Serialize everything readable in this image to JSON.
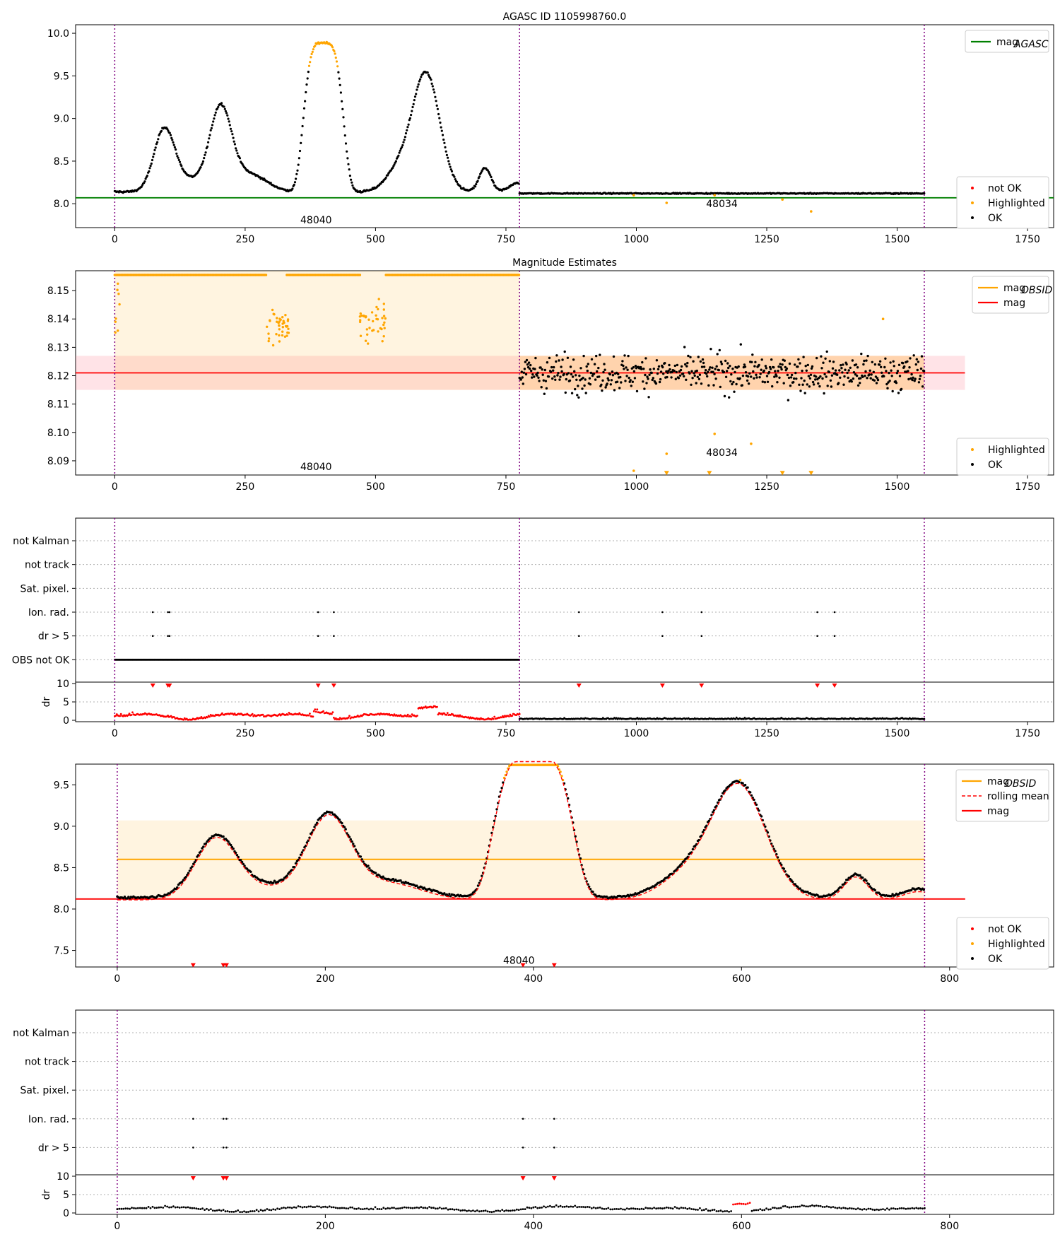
{
  "figure": {
    "title": "AGASC ID 1105998760.0"
  },
  "chart_data": [
    {
      "id": "p1",
      "type": "scatter",
      "title": "AGASC ID 1105998760.0",
      "xlim": [
        -75,
        1800
      ],
      "ylim": [
        7.72,
        10.1
      ],
      "xticks": [
        0,
        250,
        500,
        750,
        1000,
        1250,
        1500,
        1750
      ],
      "yticks": [
        8.0,
        8.5,
        9.0,
        9.5,
        10.0
      ],
      "ytick_labels": [
        "8.0",
        "8.5",
        "9.0",
        "9.5",
        "10.0"
      ],
      "vlines": [
        0,
        776,
        1552
      ],
      "hlines": [
        {
          "y": 8.07,
          "color": "#008000",
          "label": "mag_AGASC"
        }
      ],
      "obs_labels": [
        {
          "text": "48040",
          "x": 386,
          "y": 7.81
        },
        {
          "text": "48034",
          "x": 1164,
          "y": 8.0
        }
      ],
      "legend_upper": [
        {
          "kind": "line",
          "color": "#008000",
          "label": "mag",
          "sub": "AGASC"
        }
      ],
      "legend_lower": [
        {
          "kind": "dot",
          "color": "#ff0000",
          "label": "not OK"
        },
        {
          "kind": "dot",
          "color": "#ffa500",
          "label": "Highlighted"
        },
        {
          "kind": "dot",
          "color": "#000000",
          "label": "OK"
        }
      ],
      "series_obs1": {
        "x_range": [
          0,
          776
        ],
        "peaks": [
          [
            95,
            0.72
          ],
          [
            203,
            0.98
          ],
          [
            400,
            1.75
          ],
          [
            597,
            1.38
          ],
          [
            710,
            0.28
          ]
        ],
        "base": 8.14
      },
      "series_obs2": {
        "x_range": [
          776,
          1552
        ],
        "level": 8.121
      },
      "highlighted_low": [
        [
          995,
          8.1
        ],
        [
          1058,
          8.01
        ],
        [
          1150,
          8.1
        ],
        [
          1280,
          8.05
        ],
        [
          1335,
          7.91
        ]
      ]
    },
    {
      "id": "p2",
      "type": "scatter",
      "title": "Magnitude Estimates",
      "xlim": [
        -75,
        1800
      ],
      "ylim": [
        8.085,
        8.157
      ],
      "xticks": [
        0,
        250,
        500,
        750,
        1000,
        1250,
        1500,
        1750
      ],
      "yticks": [
        8.09,
        8.1,
        8.11,
        8.12,
        8.13,
        8.14,
        8.15
      ],
      "ytick_labels": [
        "8.09",
        "8.10",
        "8.11",
        "8.12",
        "8.13",
        "8.14",
        "8.15"
      ],
      "vlines": [
        0,
        776,
        1552
      ],
      "mag": 8.121,
      "mag_band": [
        8.115,
        8.127
      ],
      "obsid_band": [
        8.115,
        8.157
      ],
      "obs_labels": [
        {
          "text": "48040",
          "x": 386,
          "y": 8.088
        },
        {
          "text": "48034",
          "x": 1164,
          "y": 8.093
        }
      ],
      "legend_upper": [
        {
          "kind": "line",
          "color": "#ffa500",
          "label": "mag",
          "sub": "OBSID"
        },
        {
          "kind": "line",
          "color": "#ff0000",
          "label": "mag"
        }
      ],
      "legend_lower": [
        {
          "kind": "dot",
          "color": "#ffa500",
          "label": "Highlighted"
        },
        {
          "kind": "dot",
          "color": "#000000",
          "label": "OK"
        }
      ],
      "highlighted_low": [
        [
          995,
          8.0865
        ],
        [
          1058,
          8.0925
        ],
        [
          1150,
          8.0995
        ],
        [
          1220,
          8.096
        ],
        [
          1473,
          8.14
        ]
      ]
    },
    {
      "id": "p3",
      "type": "scatter",
      "xlim": [
        -75,
        1800
      ],
      "xticks": [
        0,
        250,
        500,
        750,
        1000,
        1250,
        1500,
        1750
      ],
      "vlines": [
        0,
        776,
        1552
      ],
      "flag_labels": [
        "not Kalman",
        "not track",
        "Sat. pixel.",
        "Ion. rad.",
        "dr > 5",
        "OBS not OK"
      ],
      "ion_x": [
        73,
        102,
        105,
        390,
        420,
        890,
        1050,
        1125,
        1347,
        1380
      ],
      "dr_ylabel": "dr",
      "dr_yticks": [
        0,
        5,
        10
      ],
      "dr_ylim": [
        0,
        10
      ]
    },
    {
      "id": "p4",
      "type": "scatter",
      "xlim": [
        -40,
        900
      ],
      "ylim": [
        7.3,
        9.75
      ],
      "xticks": [
        0,
        200,
        400,
        600,
        800
      ],
      "yticks": [
        7.5,
        8.0,
        8.5,
        9.0,
        9.5
      ],
      "ytick_labels": [
        "7.5",
        "8.0",
        "8.5",
        "9.0",
        "9.5"
      ],
      "vlines": [
        0,
        776
      ],
      "mag_obsid": 8.6,
      "obsid_band": [
        8.13,
        9.07
      ],
      "mag": 8.121,
      "obs_labels": [
        {
          "text": "48040",
          "x": 386,
          "y": 7.38
        }
      ],
      "legend_upper": [
        {
          "kind": "line",
          "color": "#ffa500",
          "label": "mag",
          "sub": "OBSID"
        },
        {
          "kind": "dash",
          "color": "#ff0000",
          "label": "rolling mean"
        },
        {
          "kind": "line",
          "color": "#ff0000",
          "label": "mag"
        }
      ],
      "legend_lower": [
        {
          "kind": "dot",
          "color": "#ff0000",
          "label": "not OK"
        },
        {
          "kind": "dot",
          "color": "#ffa500",
          "label": "Highlighted"
        },
        {
          "kind": "dot",
          "color": "#000000",
          "label": "OK"
        }
      ],
      "notok_x": [
        73,
        102,
        105,
        390,
        420
      ]
    },
    {
      "id": "p5",
      "type": "scatter",
      "xlim": [
        -40,
        900
      ],
      "xticks": [
        0,
        200,
        400,
        600,
        800
      ],
      "vlines": [
        0,
        776
      ],
      "flag_labels": [
        "not Kalman",
        "not track",
        "Sat. pixel.",
        "Ion. rad.",
        "dr > 5"
      ],
      "ion_x": [
        73,
        102,
        105,
        390,
        420
      ],
      "dr_ylabel": "dr",
      "dr_yticks": [
        0,
        5,
        10
      ],
      "dr_ylim": [
        0,
        10
      ]
    }
  ]
}
